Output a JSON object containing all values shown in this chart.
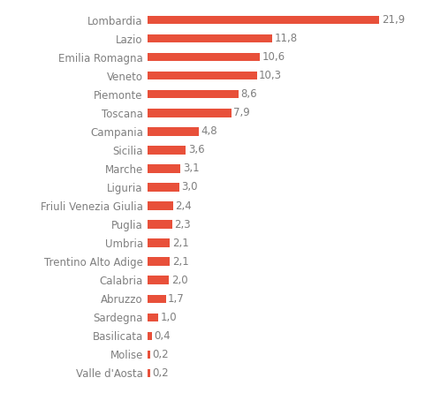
{
  "regions": [
    "Valle d'Aosta",
    "Molise",
    "Basilicata",
    "Sardegna",
    "Abruzzo",
    "Calabria",
    "Trentino Alto Adige",
    "Umbria",
    "Puglia",
    "Friuli Venezia Giulia",
    "Liguria",
    "Marche",
    "Sicilia",
    "Campania",
    "Toscana",
    "Piemonte",
    "Veneto",
    "Emilia Romagna",
    "Lazio",
    "Lombardia"
  ],
  "values": [
    0.2,
    0.2,
    0.4,
    1.0,
    1.7,
    2.0,
    2.1,
    2.1,
    2.3,
    2.4,
    3.0,
    3.1,
    3.6,
    4.8,
    7.9,
    8.6,
    10.3,
    10.6,
    11.8,
    21.9
  ],
  "bar_color": "#e8503a",
  "label_color": "#7f7f7f",
  "value_color": "#7f7f7f",
  "background_color": "#ffffff",
  "bar_height": 0.45,
  "xlim": [
    0,
    25
  ],
  "value_fontsize": 8.5,
  "label_fontsize": 8.5
}
